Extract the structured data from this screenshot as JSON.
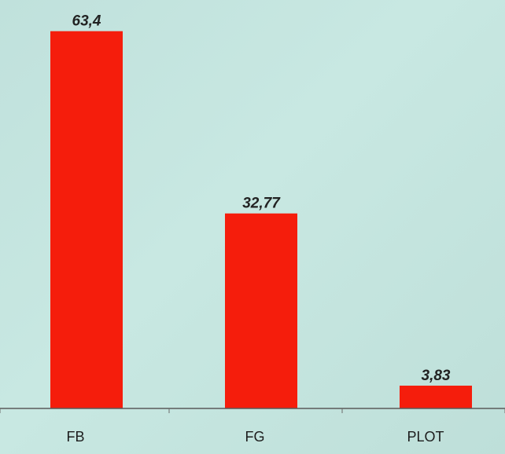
{
  "chart_data": {
    "type": "bar",
    "title": "",
    "xlabel": "",
    "ylabel": "",
    "categories": [
      "FB",
      "FG",
      "PLOT"
    ],
    "values": [
      63.4,
      32.77,
      3.83
    ],
    "value_labels": [
      "63,4",
      "32,77",
      "3,83"
    ],
    "ylim": [
      0,
      66
    ],
    "grid": false,
    "legend": "none",
    "bar_color": "#f51d0c",
    "background_color": "#c4e4df"
  }
}
